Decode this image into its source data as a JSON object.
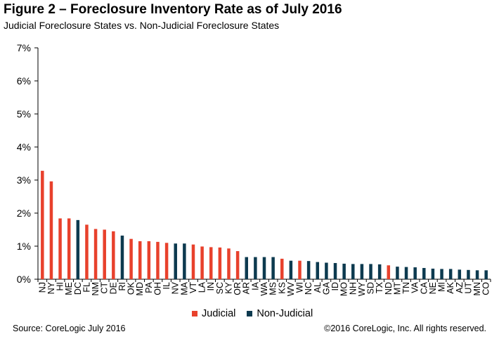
{
  "header": {
    "title": "Figure 2 – Foreclosure Inventory Rate as of July 2016",
    "subtitle": "Judicial Foreclosure States vs. Non-Judicial Foreclosure States"
  },
  "footer": {
    "source": "Source: CoreLogic July 2016",
    "copyright": "©2016 CoreLogic, Inc. All rights reserved."
  },
  "colors": {
    "Judicial": "#e8412c",
    "Non-Judicial": "#0d3a4f"
  },
  "chart_data": {
    "type": "bar",
    "categories": [
      "NJ",
      "NY",
      "HI",
      "ME",
      "DC",
      "FL",
      "NM",
      "CT",
      "DE",
      "RI",
      "OK",
      "MD",
      "PA",
      "OH",
      "IL",
      "NV",
      "MA",
      "VT",
      "LA",
      "IN",
      "SC",
      "KY",
      "OR",
      "AR",
      "IA",
      "WA",
      "MS",
      "KS",
      "WV",
      "WI",
      "NC",
      "AL",
      "GA",
      "ID",
      "MO",
      "NH",
      "WY",
      "SD",
      "TX",
      "ND",
      "MT",
      "TN",
      "VA",
      "CA",
      "NE",
      "MI",
      "AK",
      "AZ",
      "UT",
      "MN",
      "CO"
    ],
    "values": [
      3.28,
      2.96,
      1.84,
      1.84,
      1.79,
      1.65,
      1.52,
      1.5,
      1.45,
      1.32,
      1.22,
      1.15,
      1.15,
      1.13,
      1.1,
      1.08,
      1.08,
      1.05,
      0.99,
      0.97,
      0.96,
      0.93,
      0.85,
      0.67,
      0.67,
      0.67,
      0.67,
      0.62,
      0.56,
      0.56,
      0.55,
      0.52,
      0.5,
      0.49,
      0.47,
      0.46,
      0.46,
      0.46,
      0.45,
      0.42,
      0.38,
      0.37,
      0.36,
      0.34,
      0.32,
      0.31,
      0.31,
      0.29,
      0.28,
      0.27,
      0.27
    ],
    "groups": [
      "Judicial",
      "Judicial",
      "Judicial",
      "Judicial",
      "Non-Judicial",
      "Judicial",
      "Judicial",
      "Judicial",
      "Judicial",
      "Non-Judicial",
      "Judicial",
      "Judicial",
      "Judicial",
      "Judicial",
      "Judicial",
      "Non-Judicial",
      "Non-Judicial",
      "Judicial",
      "Judicial",
      "Judicial",
      "Judicial",
      "Judicial",
      "Judicial",
      "Non-Judicial",
      "Non-Judicial",
      "Non-Judicial",
      "Non-Judicial",
      "Judicial",
      "Non-Judicial",
      "Judicial",
      "Non-Judicial",
      "Non-Judicial",
      "Non-Judicial",
      "Non-Judicial",
      "Non-Judicial",
      "Non-Judicial",
      "Non-Judicial",
      "Non-Judicial",
      "Non-Judicial",
      "Judicial",
      "Non-Judicial",
      "Non-Judicial",
      "Non-Judicial",
      "Non-Judicial",
      "Non-Judicial",
      "Non-Judicial",
      "Non-Judicial",
      "Non-Judicial",
      "Non-Judicial",
      "Non-Judicial",
      "Non-Judicial"
    ],
    "legend": [
      "Judicial",
      "Non-Judicial"
    ],
    "yticks": [
      "0%",
      "1%",
      "2%",
      "3%",
      "4%",
      "5%",
      "6%",
      "7%"
    ],
    "ylim": [
      0,
      7
    ],
    "grid": false,
    "legend_position": "bottom"
  }
}
